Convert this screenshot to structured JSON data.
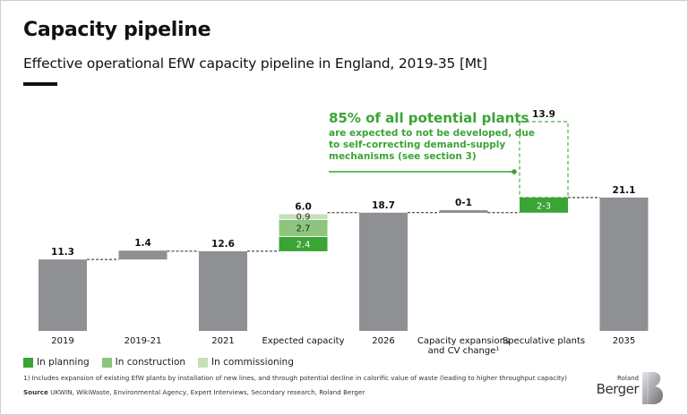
{
  "header": {
    "title": "Capacity pipeline",
    "subtitle": "Effective operational EfW capacity pipeline in England, 2019-35 [Mt]"
  },
  "callout": {
    "headline": "85% of all potential plants",
    "body_lines": [
      "are expected to not be developed, due",
      "to self-correcting demand-supply",
      "mechanisms (see section 3)"
    ]
  },
  "colors": {
    "total_bar": "#8e9094",
    "in_planning": "#3aa435",
    "in_construction": "#8cc57e",
    "in_commissioning": "#c3e0b8",
    "speculative_outline": "#5aa653",
    "text": "#111111"
  },
  "chart_data": {
    "type": "bar",
    "subtype": "waterfall",
    "title": "Effective operational EfW capacity pipeline in England, 2019-35 [Mt]",
    "unit": "Mt",
    "ylim": [
      0,
      21.1
    ],
    "grid": false,
    "legend_position": "bottom-left",
    "categories": [
      "2019",
      "2019-21",
      "2021",
      "Expected capacity",
      "2026",
      "Capacity expansions and CV change¹",
      "Speculative plants",
      "2035"
    ],
    "category_lines": [
      [
        "2019"
      ],
      [
        "2019-21"
      ],
      [
        "2021"
      ],
      [
        "Expected capacity"
      ],
      [
        "2026"
      ],
      [
        "Capacity expansions",
        "and CV change¹"
      ],
      [
        "Speculative plants"
      ],
      [
        "2035"
      ]
    ],
    "bars": [
      {
        "category": "2019",
        "kind": "total",
        "base": 0,
        "value": 11.3,
        "label": "11.3"
      },
      {
        "category": "2019-21",
        "kind": "delta",
        "base": 11.3,
        "value": 1.4,
        "label": "1.4",
        "note": "drawn spanning between 2019 and 2021 levels"
      },
      {
        "category": "2021",
        "kind": "total",
        "base": 0,
        "value": 12.6,
        "label": "12.6"
      },
      {
        "category": "Expected capacity",
        "kind": "stack",
        "base": 12.6,
        "total_label": "6.0",
        "segments": [
          {
            "series": "In planning",
            "value": 2.4,
            "label": "2.4"
          },
          {
            "series": "In construction",
            "value": 2.7,
            "label": "2.7"
          },
          {
            "series": "In commissioning",
            "value": 0.9,
            "label": "0.9"
          }
        ]
      },
      {
        "category": "2026",
        "kind": "total",
        "base": 0,
        "value": 18.7,
        "label": "18.7"
      },
      {
        "category": "Capacity expansions and CV change¹",
        "kind": "delta",
        "base": 18.7,
        "value": 0.4,
        "label": "0-1"
      },
      {
        "category": "Speculative plants",
        "kind": "delta",
        "base": 18.7,
        "value": 2.4,
        "label": "2-3",
        "potential_total": 13.9,
        "potential_label": "13.9"
      },
      {
        "category": "2035",
        "kind": "total",
        "base": 0,
        "value": 21.1,
        "label": "21.1"
      }
    ],
    "legend": [
      {
        "name": "In planning",
        "color": "#3aa435"
      },
      {
        "name": "In construction",
        "color": "#8cc57e"
      },
      {
        "name": "In commissioning",
        "color": "#c3e0b8"
      }
    ]
  },
  "footer": {
    "footnote": "1) Includes expansion of existing EfW plants by installation of new lines, and through potential decline in calorific value of waste (leading to higher throughput capacity)",
    "source_label": "Source",
    "source_text": "UKWIN, WikiWaste, Environmental Agency, Expert Interviews, Secondary research, Roland Berger",
    "logo_top": "Roland",
    "logo_bottom": "Berger"
  }
}
